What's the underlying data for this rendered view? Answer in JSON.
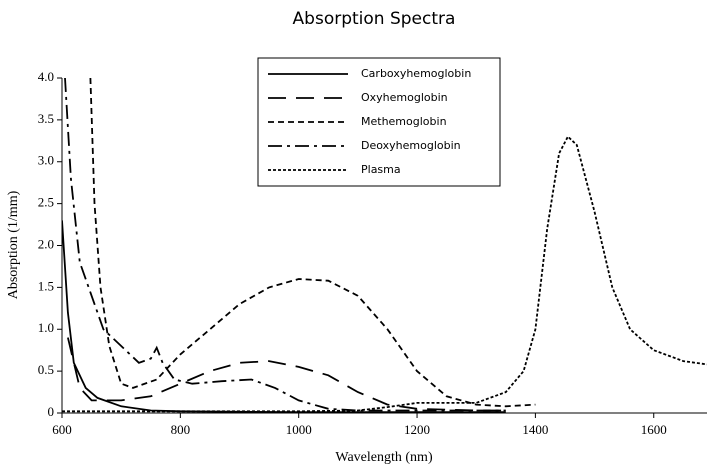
{
  "chart_data": {
    "type": "line",
    "title": "Absorption Spectra",
    "xlabel": "Wavelength (nm)",
    "ylabel": "Absorption (1/mm)",
    "xlim": [
      600,
      1690
    ],
    "ylim": [
      0,
      4.0
    ],
    "xticks": [
      600,
      800,
      1000,
      1200,
      1400,
      1600
    ],
    "yticks": [
      0,
      0.5,
      {
        "value": 1,
        "label": "1.0"
      },
      1.5,
      {
        "value": 2,
        "label": "2.0"
      },
      2.5,
      {
        "value": 3,
        "label": "3.0"
      },
      3.5,
      {
        "value": 4,
        "label": "4.0"
      }
    ],
    "legend": "top center",
    "series": [
      {
        "name": "Carboxyhemoglobin",
        "color": "#000000",
        "dash": "solid",
        "x": [
          600,
          610,
          620,
          640,
          660,
          700,
          750,
          800,
          1000,
          1200,
          1350
        ],
        "values": [
          2.3,
          1.2,
          0.6,
          0.3,
          0.18,
          0.08,
          0.03,
          0.02,
          0.01,
          0.01,
          0.01
        ]
      },
      {
        "name": "Oxyhemoglobin",
        "color": "#000000",
        "dash": "long-dash",
        "x": [
          610,
          630,
          650,
          700,
          750,
          800,
          850,
          900,
          950,
          1000,
          1050,
          1100,
          1150,
          1200,
          1300,
          1350
        ],
        "values": [
          0.9,
          0.3,
          0.15,
          0.15,
          0.2,
          0.35,
          0.5,
          0.6,
          0.62,
          0.55,
          0.45,
          0.25,
          0.1,
          0.05,
          0.03,
          0.03
        ]
      },
      {
        "name": "Methemoglobin",
        "color": "#000000",
        "dash": "short-dash",
        "x": [
          648,
          655,
          665,
          680,
          700,
          720,
          760,
          800,
          850,
          900,
          950,
          1000,
          1050,
          1100,
          1150,
          1200,
          1250,
          1300,
          1350,
          1400
        ],
        "values": [
          4.0,
          2.5,
          1.5,
          0.8,
          0.35,
          0.3,
          0.4,
          0.7,
          1.0,
          1.3,
          1.5,
          1.6,
          1.58,
          1.4,
          1.0,
          0.5,
          0.2,
          0.1,
          0.08,
          0.1
        ]
      },
      {
        "name": "Deoxyhemoglobin",
        "color": "#000000",
        "dash": "dash-dot",
        "x": [
          605,
          615,
          630,
          650,
          670,
          700,
          730,
          750,
          760,
          770,
          790,
          820,
          870,
          920,
          960,
          1000,
          1050,
          1100,
          1200,
          1350
        ],
        "values": [
          4.0,
          2.8,
          1.8,
          1.4,
          1.0,
          0.8,
          0.6,
          0.65,
          0.78,
          0.6,
          0.4,
          0.35,
          0.38,
          0.4,
          0.3,
          0.15,
          0.05,
          0.03,
          0.03,
          0.03
        ]
      },
      {
        "name": "Plasma",
        "color": "#000000",
        "dash": "dotted",
        "x": [
          600,
          800,
          1000,
          1100,
          1150,
          1200,
          1300,
          1350,
          1380,
          1400,
          1420,
          1440,
          1455,
          1470,
          1500,
          1530,
          1560,
          1600,
          1650,
          1690
        ],
        "values": [
          0.02,
          0.02,
          0.02,
          0.03,
          0.07,
          0.12,
          0.12,
          0.25,
          0.5,
          1.0,
          2.2,
          3.1,
          3.3,
          3.2,
          2.4,
          1.5,
          1.0,
          0.75,
          0.62,
          0.58
        ]
      }
    ]
  }
}
